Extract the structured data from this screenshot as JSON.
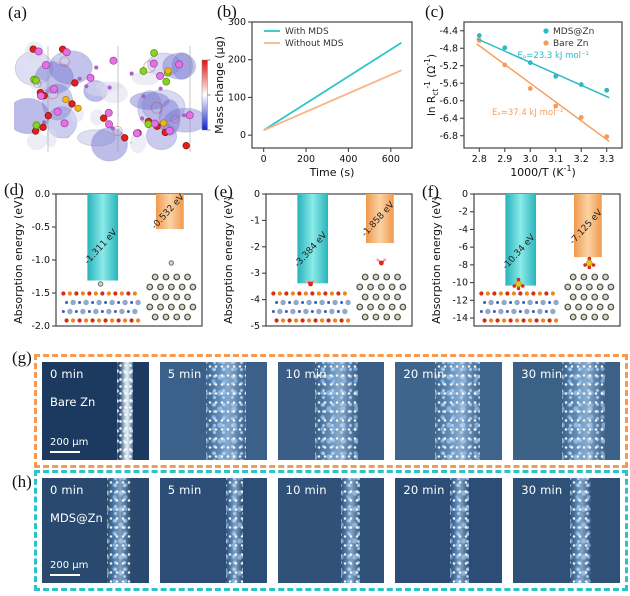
{
  "panel_labels": {
    "a": "(a)",
    "b": "(b)",
    "c": "(c)",
    "d": "(d)",
    "e": "(e)",
    "f": "(f)",
    "g": "(g)",
    "h": "(h)"
  },
  "colors": {
    "cyan": "#2bc0c6",
    "orange": "#f49d5b",
    "orange_light": "#f8b585",
    "bar_cyan_edge": "#27b4ba",
    "bar_cyan_mid": "#8ceaea",
    "bar_orange_edge": "#f0994f",
    "bar_orange_mid": "#fbd3a4",
    "dash_g": "#f59a50",
    "dash_h": "#2cc3c7"
  },
  "chart_data": [
    {
      "id": "b",
      "type": "line",
      "xlabel": "Time (s)",
      "ylabel": "Mass change (μg)",
      "xlim": [
        -55,
        700
      ],
      "ylim": [
        -34,
        300
      ],
      "xticks": [
        0,
        200,
        400,
        600
      ],
      "yticks": [
        0,
        100,
        200,
        300
      ],
      "legend_position": "top-left",
      "grid": false,
      "series": [
        {
          "name": "With MDS",
          "color": "#2dc6ca",
          "x": [
            0,
            650
          ],
          "y": [
            13,
            245
          ]
        },
        {
          "name": "Without MDS",
          "color": "#f8b585",
          "x": [
            0,
            650
          ],
          "y": [
            13,
            172
          ]
        }
      ]
    },
    {
      "id": "c",
      "type": "scatter",
      "xlabel": "1000/T (K⁻¹)",
      "ylabel": "ln Rct⁻¹ (Ω⁻¹)",
      "xlabel_parts": [
        {
          "t": "1000/T (K"
        },
        {
          "t": "-1",
          "s": "sup"
        },
        {
          "t": ")"
        }
      ],
      "ylabel_parts": [
        {
          "t": "ln R"
        },
        {
          "t": "ct",
          "s": "sub"
        },
        {
          "t": "-1",
          "s": "sup"
        },
        {
          "t": " (Ω"
        },
        {
          "t": "-1",
          "s": "sup"
        },
        {
          "t": ")"
        }
      ],
      "xlim": [
        2.74,
        3.36
      ],
      "ylim": [
        -7.08,
        -4.2
      ],
      "xticks": [
        2.8,
        2.9,
        3.0,
        3.1,
        3.2,
        3.3
      ],
      "xtick_labels": [
        "2.8",
        "2.9",
        "3.0",
        "3.1",
        "3.2",
        "3.3"
      ],
      "yticks": [
        -4.4,
        -4.8,
        -5.2,
        -5.6,
        -6.0,
        -6.4,
        -6.8
      ],
      "ytick_labels": [
        "-4.4",
        "-4.8",
        "-5.2",
        "-5.6",
        "-6.0",
        "-6.4",
        "-6.8"
      ],
      "legend_position": "top-right",
      "grid": false,
      "series": [
        {
          "name": "Bare Zn",
          "color": "#f49d5b",
          "points": [
            [
              2.8,
              -4.62
            ],
            [
              2.9,
              -5.18
            ],
            [
              3.0,
              -5.72
            ],
            [
              3.1,
              -6.12
            ],
            [
              3.2,
              -6.38
            ],
            [
              3.3,
              -6.82
            ]
          ],
          "fit": [
            [
              2.79,
              -4.7
            ],
            [
              3.31,
              -6.93
            ]
          ],
          "annotation": {
            "text": "Eₐ=37.4 kJ mol⁻¹",
            "at": [
              2.99,
              -6.33
            ]
          }
        },
        {
          "name": "MDS@Zn",
          "color": "#2bb9c4",
          "points": [
            [
              2.8,
              -4.51
            ],
            [
              2.9,
              -4.79
            ],
            [
              3.0,
              -5.13
            ],
            [
              3.1,
              -5.44
            ],
            [
              3.2,
              -5.63
            ],
            [
              3.3,
              -5.76
            ]
          ],
          "fit": [
            [
              2.79,
              -4.58
            ],
            [
              3.31,
              -5.93
            ]
          ],
          "annotation": {
            "text": "Eₐ=23.3 kJ mol⁻¹",
            "at": [
              3.09,
              -5.02
            ]
          }
        }
      ]
    },
    {
      "id": "d",
      "type": "bar",
      "ylabel": "Absorption energy (eV)",
      "ylim": [
        -2.0,
        0
      ],
      "yticks": [
        0,
        -0.5,
        -1.0,
        -1.5,
        -2.0
      ],
      "ytick_labels": [
        "0.0",
        "-0.5",
        "-1.0",
        "-1.5",
        "-2.0"
      ],
      "bars": [
        {
          "value": -1.311,
          "label": "-1.311 eV",
          "color": "cyan"
        },
        {
          "value": -0.532,
          "label": "-0.532 eV",
          "color": "orange"
        }
      ],
      "inset": "zn"
    },
    {
      "id": "e",
      "type": "bar",
      "ylabel": "Absorption energy (eV)",
      "ylim": [
        -5.0,
        0
      ],
      "yticks": [
        0,
        -1,
        -2,
        -3,
        -4,
        -5
      ],
      "ytick_labels": [
        "0",
        "-1",
        "-2",
        "-3",
        "-4",
        "-5"
      ],
      "bars": [
        {
          "value": -3.384,
          "label": "-3.384 eV",
          "color": "cyan"
        },
        {
          "value": -1.858,
          "label": "-1.858 eV",
          "color": "orange"
        }
      ],
      "inset": "water"
    },
    {
      "id": "f",
      "type": "bar",
      "ylabel": "Absorption energy (eV)",
      "ylim": [
        -14.9,
        0
      ],
      "yticks": [
        0,
        -2,
        -4,
        -6,
        -8,
        -10,
        -12,
        -14
      ],
      "ytick_labels": [
        "0",
        "-2",
        "-4",
        "-6",
        "-8",
        "-10",
        "-12",
        "-14"
      ],
      "bars": [
        {
          "value": -10.34,
          "label": "-10.34 eV",
          "color": "cyan"
        },
        {
          "value": -7.125,
          "label": "-7.125 eV",
          "color": "orange"
        }
      ],
      "inset": "sulfate"
    }
  ],
  "micro_rows": [
    {
      "id": "g",
      "sample": "Bare Zn",
      "scale_bar": "200 μm",
      "border_color": "#f59a50",
      "times": [
        "0 min",
        "5 min",
        "10 min",
        "20 min",
        "30 min"
      ]
    },
    {
      "id": "h",
      "sample": "MDS@Zn",
      "scale_bar": "200 μm",
      "border_color": "#2cc3c7",
      "times": [
        "0 min",
        "5 min",
        "10 min",
        "20 min",
        "30 min"
      ]
    }
  ],
  "colorbar": {
    "top_color": "#dd1111",
    "mid_color": "#ffffff",
    "bottom_color": "#1122cc"
  }
}
